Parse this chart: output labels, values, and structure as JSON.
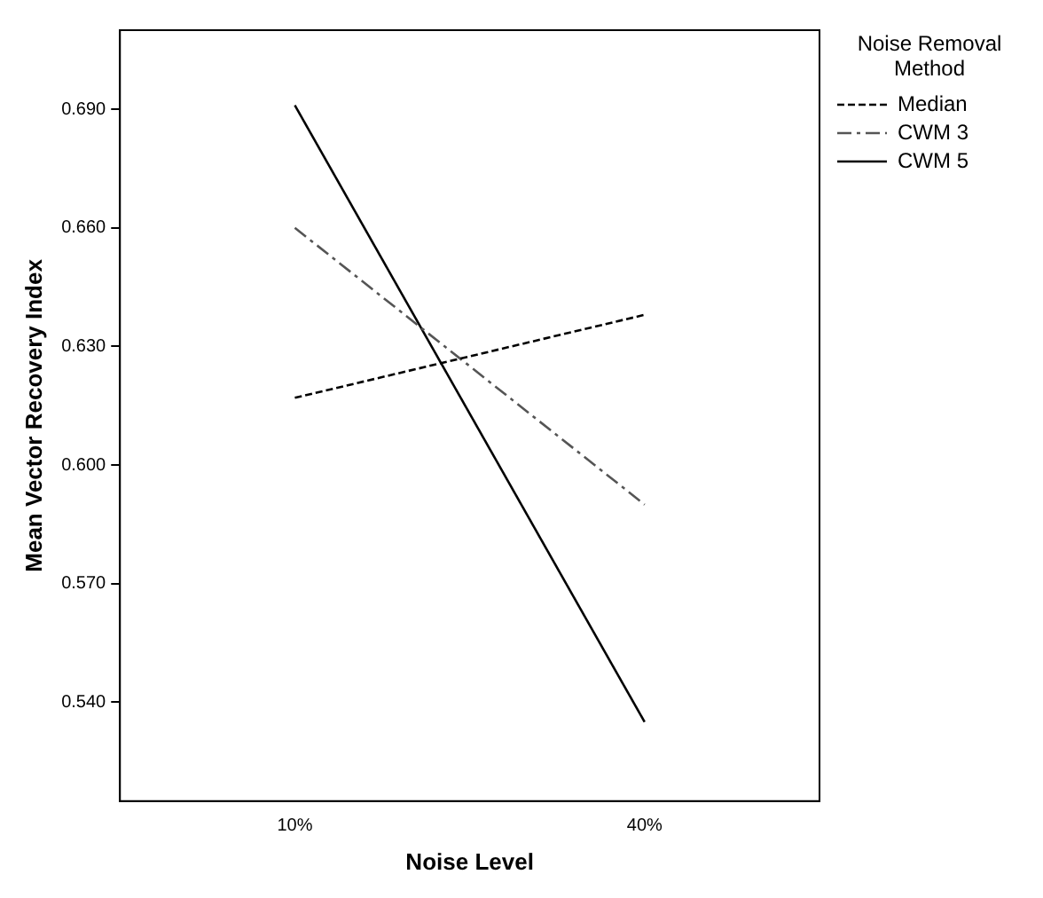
{
  "chart_data": {
    "type": "line",
    "xlabel": "Noise Level",
    "ylabel": "Mean Vector Recovery Index",
    "legend_title": "Noise Removal Method",
    "categories": [
      "10%",
      "40%"
    ],
    "series": [
      {
        "name": "Median",
        "color": "#000000",
        "line_style": "dotted",
        "values": [
          0.617,
          0.638
        ]
      },
      {
        "name": "CWM 3",
        "color": "#555555",
        "line_style": "dashed",
        "values": [
          0.66,
          0.59
        ]
      },
      {
        "name": "CWM 5",
        "color": "#000000",
        "line_style": "solid",
        "values": [
          0.691,
          0.535
        ]
      }
    ],
    "ylim": [
      0.515,
      0.71
    ],
    "yticks": [
      {
        "value": 0.54,
        "label": "0.540"
      },
      {
        "value": 0.57,
        "label": "0.570"
      },
      {
        "value": 0.6,
        "label": "0.600"
      },
      {
        "value": 0.63,
        "label": "0.630"
      },
      {
        "value": 0.66,
        "label": "0.660"
      },
      {
        "value": 0.69,
        "label": "0.690"
      }
    ],
    "grid": false,
    "legend": "right",
    "marker": "none"
  }
}
